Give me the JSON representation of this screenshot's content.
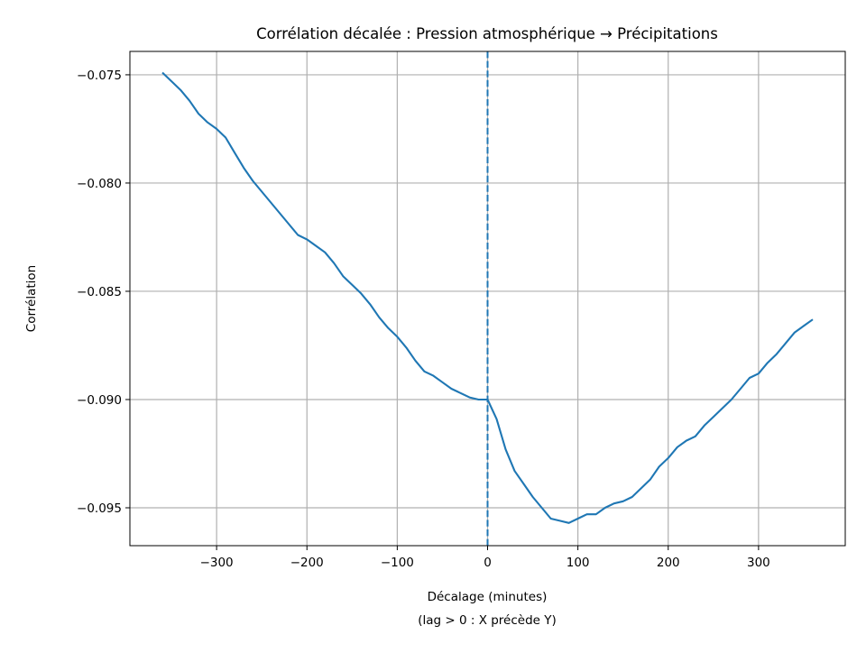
{
  "chart_data": {
    "type": "line",
    "title": "Corrélation décalée : Pression atmosphérique → Précipitations",
    "xlabel": "Décalage (minutes)",
    "xlabel_sub": "(lag > 0 : X précède Y)",
    "ylabel": "Corrélation",
    "xlim": [
      -396,
      396
    ],
    "ylim": [
      -0.09675,
      -0.07392
    ],
    "grid": true,
    "x_ticks": [
      -300,
      -200,
      -100,
      0,
      100,
      200,
      300
    ],
    "x_tick_labels": [
      "−300",
      "−200",
      "−100",
      "0",
      "100",
      "200",
      "300"
    ],
    "y_ticks": [
      -0.075,
      -0.08,
      -0.085,
      -0.09,
      -0.095
    ],
    "y_tick_labels": [
      "−0.075",
      "−0.080",
      "−0.085",
      "−0.090",
      "−0.095"
    ],
    "line_color": "#1f77b4",
    "vline": {
      "x": 0,
      "style": "dashed",
      "color": "#1f77b4"
    },
    "x": [
      -360,
      -350,
      -340,
      -330,
      -320,
      -310,
      -300,
      -290,
      -280,
      -270,
      -260,
      -250,
      -240,
      -230,
      -220,
      -210,
      -200,
      -190,
      -180,
      -170,
      -160,
      -150,
      -140,
      -130,
      -120,
      -110,
      -100,
      -90,
      -80,
      -70,
      -60,
      -50,
      -40,
      -30,
      -20,
      -10,
      0,
      10,
      20,
      30,
      40,
      50,
      60,
      70,
      80,
      90,
      100,
      110,
      120,
      130,
      140,
      150,
      160,
      170,
      180,
      190,
      200,
      210,
      220,
      230,
      240,
      250,
      260,
      270,
      280,
      290,
      300,
      310,
      320,
      330,
      340,
      350,
      360
    ],
    "y": [
      -0.0749,
      -0.0753,
      -0.0757,
      -0.0762,
      -0.0768,
      -0.0772,
      -0.0775,
      -0.0779,
      -0.0786,
      -0.0793,
      -0.0799,
      -0.0804,
      -0.0809,
      -0.0814,
      -0.0819,
      -0.0824,
      -0.0826,
      -0.0829,
      -0.0832,
      -0.0837,
      -0.0843,
      -0.0847,
      -0.0851,
      -0.0856,
      -0.0862,
      -0.0867,
      -0.0871,
      -0.0876,
      -0.0882,
      -0.0887,
      -0.0889,
      -0.0892,
      -0.0895,
      -0.0897,
      -0.0899,
      -0.09,
      -0.09,
      -0.0909,
      -0.0923,
      -0.0933,
      -0.0939,
      -0.0945,
      -0.095,
      -0.0955,
      -0.0956,
      -0.0957,
      -0.0955,
      -0.0953,
      -0.0953,
      -0.095,
      -0.0948,
      -0.0947,
      -0.0945,
      -0.0941,
      -0.0937,
      -0.0931,
      -0.0927,
      -0.0922,
      -0.0919,
      -0.0917,
      -0.0912,
      -0.0908,
      -0.0904,
      -0.09,
      -0.0895,
      -0.089,
      -0.0888,
      -0.0883,
      -0.0879,
      -0.0874,
      -0.0869,
      -0.0866,
      -0.0863
    ]
  }
}
